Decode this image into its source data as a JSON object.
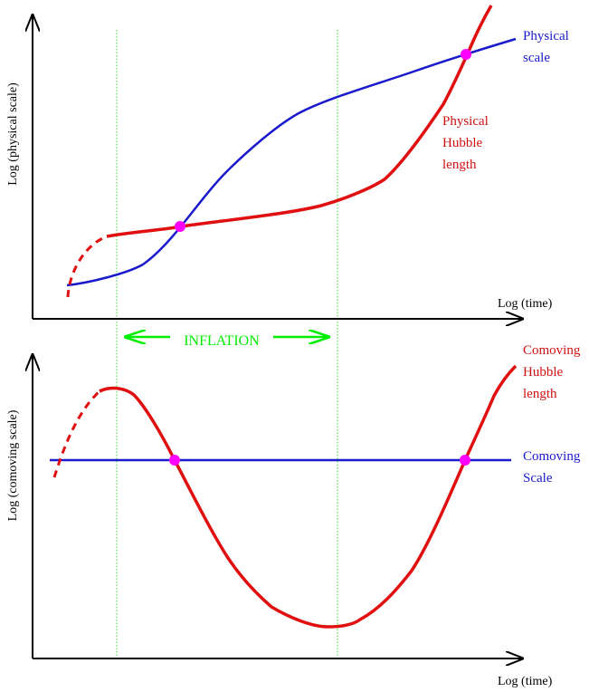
{
  "top_panel": {
    "y_axis_label": "Log (physical scale)",
    "x_axis_label": "Log (time)",
    "curve_blue_label": [
      "Physical",
      "scale"
    ],
    "curve_red_label": [
      "Physical",
      "Hubble",
      "length"
    ]
  },
  "inflation_label": "INFLATION",
  "bottom_panel": {
    "y_axis_label": "Log (comoving scale)",
    "x_axis_label": "Log (time)",
    "curve_red_label": [
      "Comoving",
      "Hubble",
      "length"
    ],
    "curve_blue_label": [
      "Comoving",
      "Scale"
    ]
  },
  "colors": {
    "axis": "#000000",
    "blue_curve": "#1a1acc",
    "red_curve": "#e01010",
    "blue_text": "#1a1acc",
    "red_text": "#d01010",
    "marker": "#ff00ff",
    "inflation": "#00ee00",
    "guide": "#33dd33"
  }
}
